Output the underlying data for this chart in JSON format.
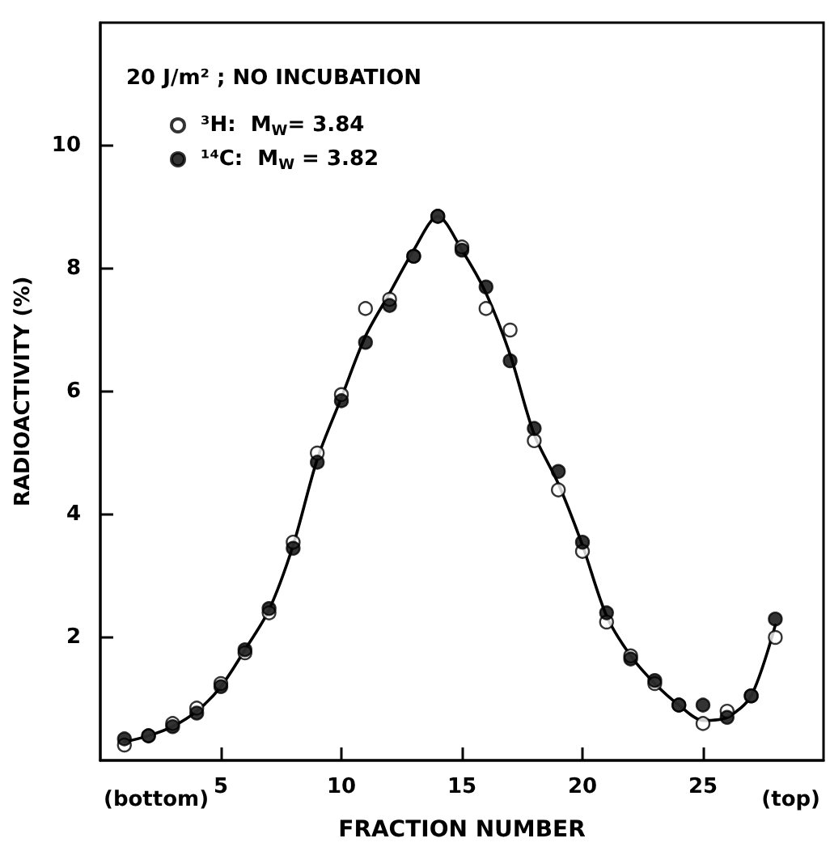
{
  "chart_data": {
    "type": "scatter",
    "xlabel": "FRACTION NUMBER",
    "ylabel": "RADIOACTIVITY (%)",
    "annotations": [
      "20 J/m² ; NO INCUBATION",
      "(bottom)",
      "(top)"
    ],
    "x": [
      1,
      2,
      3,
      4,
      5,
      6,
      7,
      8,
      9,
      10,
      11,
      12,
      13,
      14,
      15,
      16,
      17,
      18,
      19,
      20,
      21,
      22,
      23,
      24,
      25,
      26,
      27,
      28
    ],
    "series": [
      {
        "name": "³H:  M$_{W}$= 3.84",
        "color": "#ffffff",
        "values": [
          0.25,
          0.4,
          0.6,
          0.85,
          1.25,
          1.75,
          2.4,
          3.55,
          5.0,
          5.95,
          7.35,
          7.5,
          8.2,
          8.85,
          8.35,
          7.35,
          7.0,
          5.2,
          4.4,
          3.4,
          2.25,
          1.7,
          1.25,
          0.9,
          0.6,
          0.8,
          1.05,
          2.0
        ]
      },
      {
        "name": "¹⁴C:  M$_{W}$ = 3.82",
        "color": "#000000",
        "values": [
          0.35,
          0.4,
          0.55,
          0.77,
          1.2,
          1.8,
          2.47,
          3.45,
          4.85,
          5.85,
          6.8,
          7.4,
          8.2,
          8.85,
          8.3,
          7.7,
          6.5,
          5.4,
          4.7,
          3.55,
          2.4,
          1.65,
          1.3,
          0.9,
          0.9,
          0.7,
          1.05,
          2.3
        ]
      },
      {
        "type": "line",
        "color": "#000000",
        "marker": "none",
        "values": [
          0.3,
          0.4,
          0.55,
          0.8,
          1.2,
          1.8,
          2.45,
          3.5,
          4.9,
          5.9,
          6.9,
          7.6,
          8.3,
          8.85,
          8.3,
          7.6,
          6.6,
          5.3,
          4.5,
          3.5,
          2.35,
          1.7,
          1.25,
          0.9,
          0.65,
          0.7,
          1.05,
          2.2
        ]
      }
    ],
    "marker": "circle",
    "line_style": "solid",
    "xlim": [
      0,
      30
    ],
    "xticks": [
      5,
      10,
      15,
      20,
      25
    ],
    "ylim": [
      0,
      12
    ],
    "yticks": [
      2,
      4,
      6,
      8,
      10
    ],
    "grid": false,
    "legend": "top left"
  }
}
